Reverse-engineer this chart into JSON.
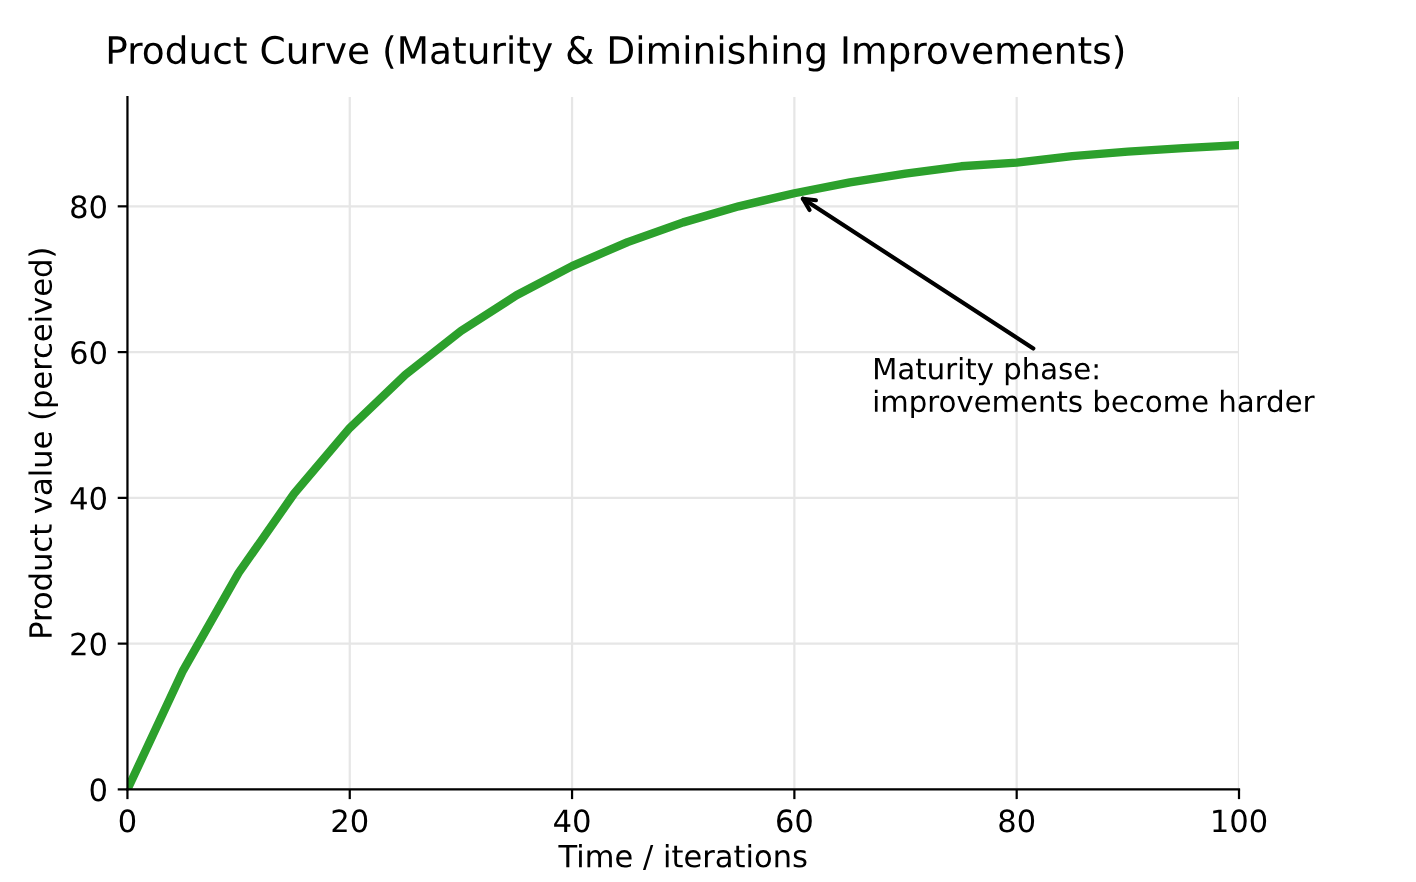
{
  "chart_data": {
    "type": "line",
    "title": "Product Curve (Maturity & Diminishing Improvements)",
    "xlabel": "Time / iterations",
    "ylabel": "Product value (perceived)",
    "x": [
      0,
      5,
      10,
      15,
      20,
      25,
      30,
      35,
      40,
      45,
      50,
      55,
      60,
      65,
      70,
      75,
      80,
      85,
      90,
      95,
      100
    ],
    "series": [
      {
        "color": "#2ca02c",
        "values": [
          0,
          16.3,
          29.7,
          40.6,
          49.6,
          56.9,
          62.9,
          67.8,
          71.8,
          75.1,
          77.8,
          80.0,
          81.8,
          83.3,
          84.5,
          85.5,
          86.0,
          86.9,
          87.5,
          88.0,
          88.4
        ]
      }
    ],
    "annotations": [
      {
        "text": "Maturity phase:\nimprovements become harder",
        "x": 60,
        "y": 81.8
      }
    ],
    "xlim": [
      0,
      100
    ],
    "ylim": [
      0,
      95
    ],
    "xticks": [
      0,
      20,
      40,
      60,
      80,
      100
    ],
    "yticks": [
      0,
      20,
      40,
      60,
      80
    ],
    "grid": true,
    "marker": "none",
    "line_style": "solid"
  }
}
